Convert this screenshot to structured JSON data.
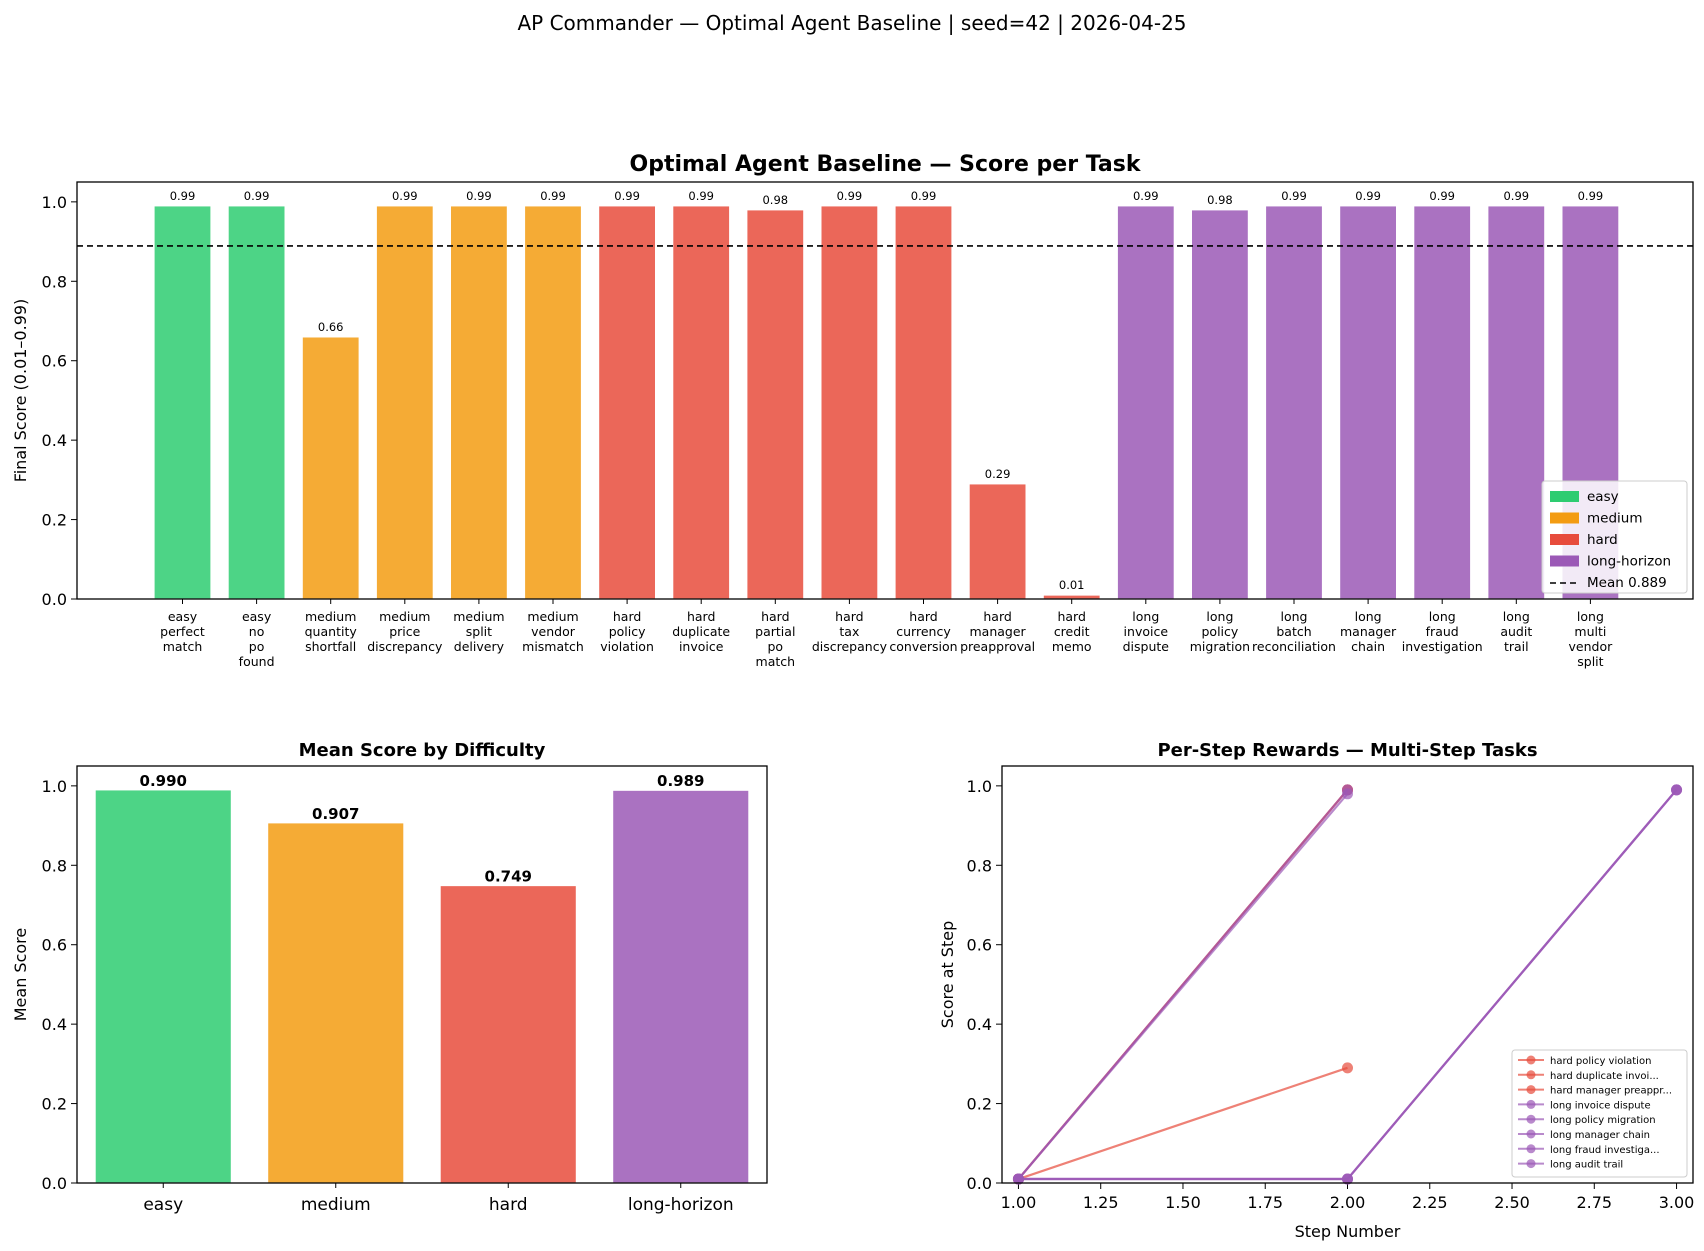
{
  "suptitle": "AP Commander — Optimal Agent Baseline  |  seed=42  |  2026-04-25",
  "colors": {
    "easy": "#2ecc71",
    "medium": "#f39c12",
    "hard": "#e74c3c",
    "long-horizon": "#9b59b6",
    "mean_line": "#000000"
  },
  "chart_data": [
    {
      "type": "bar",
      "title": "Optimal Agent Baseline — Score per Task",
      "xlabel": "",
      "ylabel": "Final Score (0.01–0.99)",
      "ylim": [
        0,
        1.05
      ],
      "yticks": [
        "0.0",
        "0.2",
        "0.4",
        "0.6",
        "0.8",
        "1.0"
      ],
      "categories": [
        "easy perfect match",
        "easy no po found",
        "medium quantity shortfall",
        "medium price discrepancy",
        "medium split delivery",
        "medium vendor mismatch",
        "hard policy violation",
        "hard duplicate invoice",
        "hard partial po match",
        "hard tax discrepancy",
        "hard currency conversion",
        "hard manager preapproval",
        "hard credit memo",
        "long invoice dispute",
        "long policy migration",
        "long batch reconciliation",
        "long manager chain",
        "long fraud investigation",
        "long audit trail",
        "long multi vendor split"
      ],
      "difficulty": [
        "easy",
        "easy",
        "medium",
        "medium",
        "medium",
        "medium",
        "hard",
        "hard",
        "hard",
        "hard",
        "hard",
        "hard",
        "hard",
        "long-horizon",
        "long-horizon",
        "long-horizon",
        "long-horizon",
        "long-horizon",
        "long-horizon",
        "long-horizon"
      ],
      "values": [
        0.99,
        0.99,
        0.66,
        0.99,
        0.99,
        0.99,
        0.99,
        0.99,
        0.98,
        0.99,
        0.99,
        0.29,
        0.01,
        0.99,
        0.98,
        0.99,
        0.99,
        0.99,
        0.99,
        0.99
      ],
      "value_labels": [
        "0.99",
        "0.99",
        "0.66",
        "0.99",
        "0.99",
        "0.99",
        "0.99",
        "0.99",
        "0.98",
        "0.99",
        "0.99",
        "0.29",
        "0.01",
        "0.99",
        "0.98",
        "0.99",
        "0.99",
        "0.99",
        "0.99",
        "0.99"
      ],
      "mean": 0.889,
      "legend": {
        "placement": "lower-right",
        "entries": [
          "easy",
          "medium",
          "hard",
          "long-horizon",
          "Mean 0.889"
        ]
      }
    },
    {
      "type": "bar",
      "title": "Mean Score by Difficulty",
      "xlabel": "",
      "ylabel": "Mean Score",
      "ylim": [
        0,
        1.05
      ],
      "yticks": [
        "0.0",
        "0.2",
        "0.4",
        "0.6",
        "0.8",
        "1.0"
      ],
      "categories": [
        "easy",
        "medium",
        "hard",
        "long-horizon"
      ],
      "values": [
        0.99,
        0.907,
        0.749,
        0.989
      ],
      "value_labels": [
        "0.990",
        "0.907",
        "0.749",
        "0.989"
      ]
    },
    {
      "type": "line",
      "title": "Per-Step Rewards — Multi-Step Tasks",
      "xlabel": "Step Number",
      "ylabel": "Score at Step",
      "xlim": [
        0.95,
        3.05
      ],
      "ylim": [
        0,
        1.05
      ],
      "xticks": [
        "1.00",
        "1.25",
        "1.50",
        "1.75",
        "2.00",
        "2.25",
        "2.50",
        "2.75",
        "3.00"
      ],
      "yticks": [
        "0.0",
        "0.2",
        "0.4",
        "0.6",
        "0.8",
        "1.0"
      ],
      "legend": {
        "placement": "lower-right"
      },
      "series": [
        {
          "name": "hard policy violation",
          "difficulty": "hard",
          "x": [
            1,
            2
          ],
          "y": [
            0.01,
            0.99
          ]
        },
        {
          "name": "hard duplicate invoi...",
          "difficulty": "hard",
          "x": [
            1,
            2
          ],
          "y": [
            0.01,
            0.99
          ]
        },
        {
          "name": "hard manager preappr...",
          "difficulty": "hard",
          "x": [
            1,
            2
          ],
          "y": [
            0.01,
            0.29
          ]
        },
        {
          "name": "long invoice dispute",
          "difficulty": "long-horizon",
          "x": [
            1,
            2
          ],
          "y": [
            0.01,
            0.99
          ]
        },
        {
          "name": "long policy migration",
          "difficulty": "long-horizon",
          "x": [
            1,
            2
          ],
          "y": [
            0.01,
            0.98
          ]
        },
        {
          "name": "long manager chain",
          "difficulty": "long-horizon",
          "x": [
            1,
            2,
            3
          ],
          "y": [
            0.01,
            0.01,
            0.99
          ]
        },
        {
          "name": "long fraud investiga...",
          "difficulty": "long-horizon",
          "x": [
            1,
            2,
            3
          ],
          "y": [
            0.01,
            0.01,
            0.99
          ]
        },
        {
          "name": "long audit trail",
          "difficulty": "long-horizon",
          "x": [
            1,
            2,
            3
          ],
          "y": [
            0.01,
            0.01,
            0.99
          ]
        }
      ]
    }
  ]
}
